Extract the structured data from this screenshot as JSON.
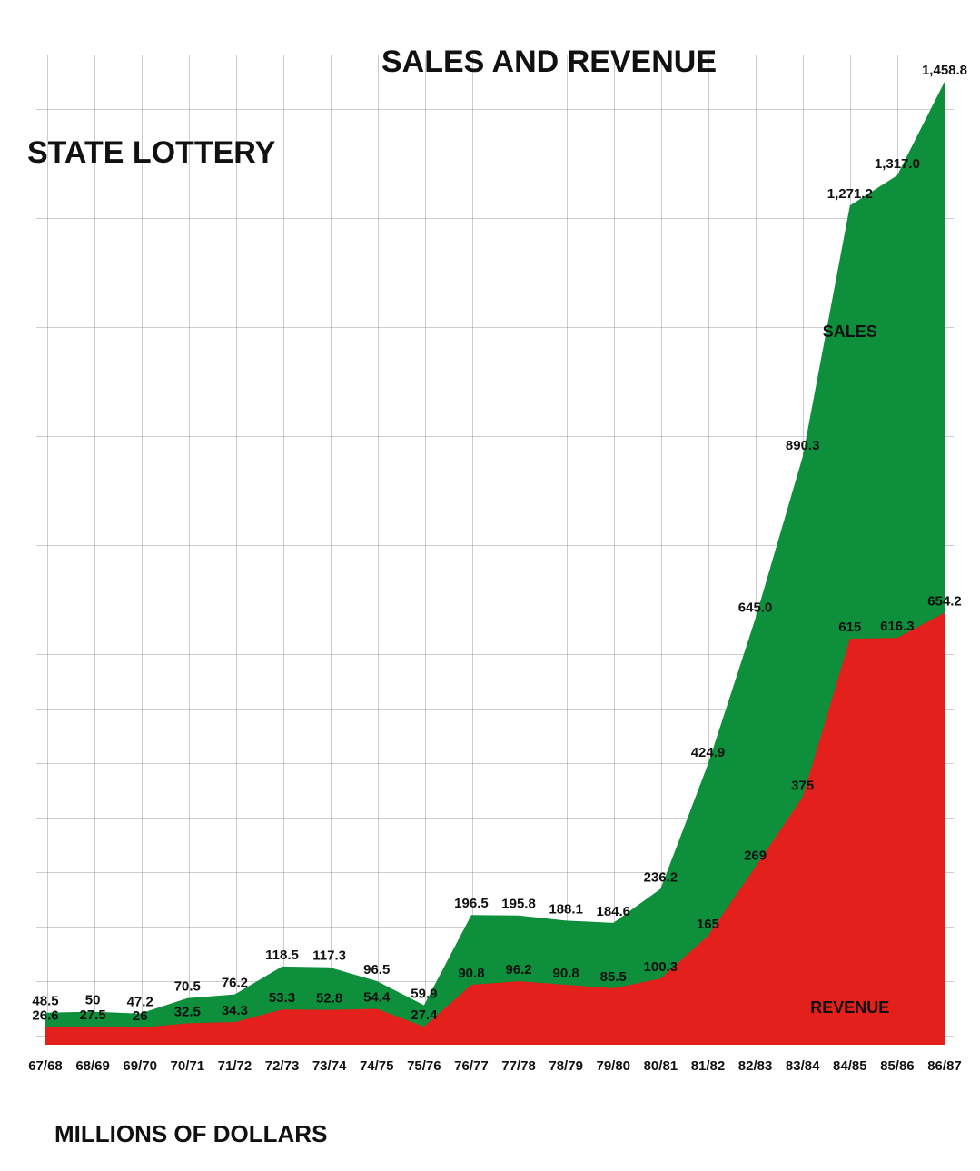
{
  "chart_data": {
    "type": "area",
    "title": "STATE LOTTERY",
    "subtitle": "SALES AND REVENUE",
    "y_label": "MILLIONS OF DOLLARS",
    "categories": [
      "67/68",
      "68/69",
      "69/70",
      "70/71",
      "71/72",
      "72/73",
      "73/74",
      "74/75",
      "75/76",
      "76/77",
      "77/78",
      "78/79",
      "79/80",
      "80/81",
      "81/82",
      "82/83",
      "83/84",
      "84/85",
      "85/86",
      "86/87"
    ],
    "series": [
      {
        "name": "SALES",
        "color": "#0e8f3c",
        "values": [
          48.5,
          50,
          47.2,
          70.5,
          76.2,
          118.5,
          117.3,
          96.5,
          59.9,
          196.5,
          195.8,
          188.1,
          184.6,
          236.2,
          424.9,
          645.0,
          890.3,
          1271.2,
          1317.0,
          1458.8
        ],
        "value_labels": [
          "48.5",
          "50",
          "47.2",
          "70.5",
          "76.2",
          "118.5",
          "117.3",
          "96.5",
          "59.9",
          "196.5",
          "195.8",
          "188.1",
          "184.6",
          "236.2",
          "424.9",
          "645.0",
          "890.3",
          "1,271.2",
          "1,317.0",
          "1,458.8"
        ]
      },
      {
        "name": "REVENUE",
        "color": "#e3201c",
        "values": [
          26.6,
          27.5,
          26,
          32.5,
          34.3,
          53.3,
          52.8,
          54.4,
          27.4,
          90.8,
          96.2,
          90.8,
          85.5,
          100.3,
          165,
          269,
          375,
          615,
          616.3,
          654.2
        ],
        "value_labels": [
          "26.6",
          "27.5",
          "26",
          "32.5",
          "34.3",
          "53.3",
          "52.8",
          "54.4",
          "27.4",
          "90.8",
          "96.2",
          "90.8",
          "85.5",
          "100.3",
          "165",
          "269",
          "375",
          "615",
          "616.3",
          "654.2"
        ]
      }
    ],
    "ylim": [
      0,
      1500
    ],
    "grid": true
  }
}
